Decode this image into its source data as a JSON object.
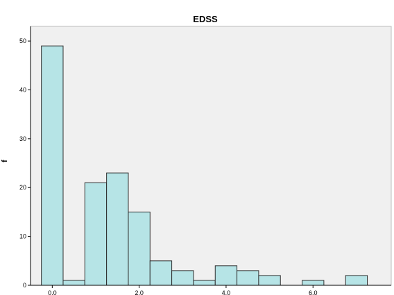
{
  "chart_data": {
    "type": "bar",
    "subtype": "histogram",
    "title": "EDSS",
    "xlabel": "",
    "ylabel": "f",
    "bins": [
      {
        "start": -0.25,
        "end": 0.25,
        "count": 49
      },
      {
        "start": 0.25,
        "end": 0.75,
        "count": 1
      },
      {
        "start": 0.75,
        "end": 1.25,
        "count": 21
      },
      {
        "start": 1.25,
        "end": 1.75,
        "count": 23
      },
      {
        "start": 1.75,
        "end": 2.25,
        "count": 15
      },
      {
        "start": 2.25,
        "end": 2.75,
        "count": 5
      },
      {
        "start": 2.75,
        "end": 3.25,
        "count": 3
      },
      {
        "start": 3.25,
        "end": 3.75,
        "count": 1
      },
      {
        "start": 3.75,
        "end": 4.25,
        "count": 4
      },
      {
        "start": 4.25,
        "end": 4.75,
        "count": 3
      },
      {
        "start": 4.75,
        "end": 5.25,
        "count": 2
      },
      {
        "start": 5.75,
        "end": 6.25,
        "count": 1
      },
      {
        "start": 6.75,
        "end": 7.25,
        "count": 2
      }
    ],
    "xticks": [
      {
        "value": 0,
        "label": "0.0"
      },
      {
        "value": 2,
        "label": "2.0"
      },
      {
        "value": 4,
        "label": "4.0"
      },
      {
        "value": 6,
        "label": "6.0"
      }
    ],
    "yticks": [
      {
        "value": 0,
        "label": "0"
      },
      {
        "value": 10,
        "label": "10"
      },
      {
        "value": 20,
        "label": "20"
      },
      {
        "value": 30,
        "label": "30"
      },
      {
        "value": 40,
        "label": "40"
      },
      {
        "value": 50,
        "label": "50"
      }
    ],
    "xlim": [
      -0.5,
      7.8
    ],
    "ylim": [
      0,
      53
    ],
    "grid": false,
    "colors": {
      "bar_fill": "#b6e4e6",
      "bar_stroke": "#2e2e2e",
      "plot_background": "#f0f0f0",
      "axis": "#000000"
    }
  }
}
